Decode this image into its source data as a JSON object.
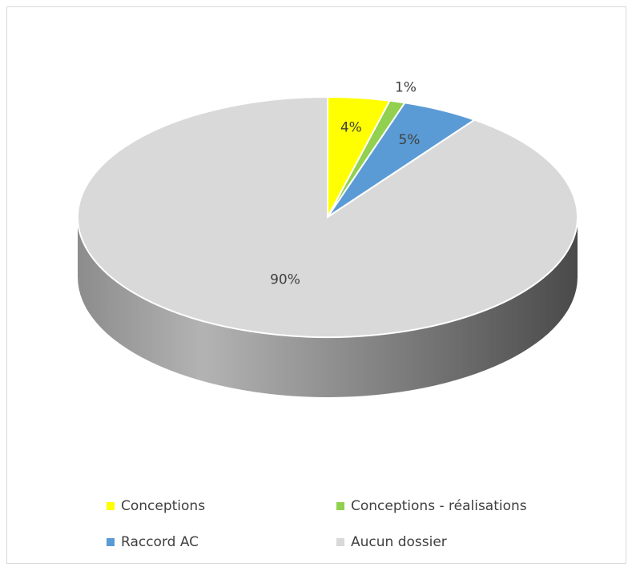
{
  "chart_data": {
    "type": "pie",
    "title": "",
    "categories": [
      "Conceptions",
      "Conceptions - réalisations",
      "Raccord AC",
      "Aucun dossier"
    ],
    "values": [
      4,
      1,
      5,
      90
    ],
    "labels": [
      "4%",
      "1%",
      "5%",
      "90%"
    ],
    "colors": [
      "#ffff00",
      "#92d050",
      "#5b9bd5",
      "#d9d9d9"
    ],
    "legend_position": "bottom",
    "style": "3d"
  }
}
